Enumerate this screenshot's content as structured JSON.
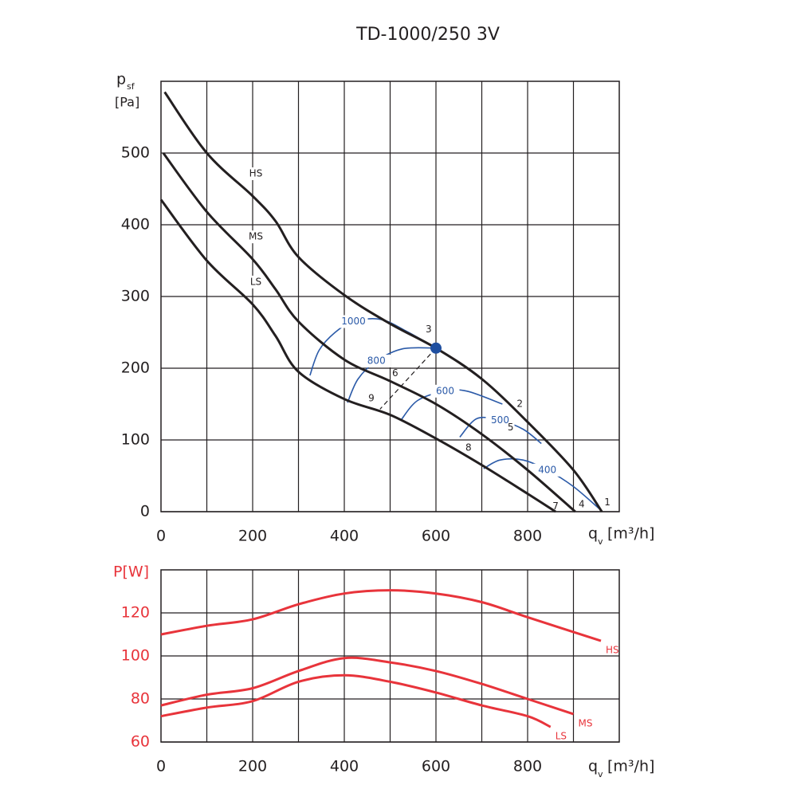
{
  "chart_data": [
    {
      "type": "line",
      "title": "TD-1000/250 3V",
      "y_label": "p",
      "y_label_sub": "sf",
      "y_unit": "[Pa]",
      "x_label": "q",
      "x_label_sub": "v",
      "x_unit": "[m³/h]",
      "xlim": [
        0,
        1000
      ],
      "xticks": [
        0,
        200,
        400,
        600,
        800
      ],
      "xgrid": [
        100,
        200,
        300,
        400,
        500,
        600,
        700,
        800,
        900
      ],
      "ylim": [
        0,
        600
      ],
      "yticks": [
        0,
        100,
        200,
        300,
        400,
        500
      ],
      "grid": true,
      "series": [
        {
          "name": "HS",
          "color": "#231f20",
          "x": [
            8,
            100,
            200,
            250,
            300,
            400,
            500,
            600,
            700,
            800,
            900,
            962
          ],
          "values": [
            585,
            500,
            440,
            405,
            355,
            302,
            262,
            228,
            185,
            125,
            58,
            0
          ]
        },
        {
          "name": "MS",
          "color": "#231f20",
          "x": [
            5,
            100,
            200,
            250,
            300,
            400,
            500,
            600,
            700,
            800,
            904
          ],
          "values": [
            500,
            418,
            352,
            310,
            265,
            212,
            182,
            150,
            108,
            58,
            0
          ]
        },
        {
          "name": "LS",
          "color": "#231f20",
          "x": [
            0,
            100,
            200,
            250,
            300,
            400,
            500,
            600,
            700,
            800,
            861
          ],
          "values": [
            435,
            350,
            289,
            245,
            195,
            157,
            135,
            102,
            65,
            25,
            0
          ]
        }
      ],
      "iso_lines": [
        {
          "name": "1000",
          "color": "#2b5aa8",
          "x": [
            325,
            345,
            380,
            420,
            480,
            540,
            600
          ],
          "values": [
            190,
            225,
            250,
            265,
            268,
            250,
            228
          ]
        },
        {
          "name": "800",
          "color": "#2b5aa8",
          "x": [
            407,
            430,
            470,
            527,
            600
          ],
          "values": [
            152,
            185,
            210,
            227,
            228
          ]
        },
        {
          "name": "600",
          "color": "#2b5aa8",
          "x": [
            523,
            560,
            620,
            668,
            745
          ],
          "values": [
            127,
            155,
            168,
            168,
            150
          ]
        },
        {
          "name": "500",
          "color": "#2b5aa8",
          "x": [
            652,
            690,
            740,
            790,
            830
          ],
          "values": [
            104,
            130,
            127,
            115,
            95
          ]
        },
        {
          "name": "400",
          "color": "#2b5aa8",
          "x": [
            704,
            740,
            790,
            843,
            900,
            960
          ],
          "values": [
            60,
            72,
            72,
            58,
            35,
            2
          ]
        }
      ],
      "operating_point": {
        "x": 600,
        "y": 228,
        "color": "#1f4fa0"
      },
      "guide_line": {
        "x": [
          600,
          478
        ],
        "values": [
          228,
          143
        ]
      },
      "annotations": [
        {
          "text": "1",
          "x": 974,
          "y": 13
        },
        {
          "text": "2",
          "x": 783,
          "y": 150
        },
        {
          "text": "3",
          "x": 584,
          "y": 254
        },
        {
          "text": "4",
          "x": 918,
          "y": 10
        },
        {
          "text": "5",
          "x": 763,
          "y": 117
        },
        {
          "text": "6",
          "x": 511,
          "y": 193
        },
        {
          "text": "7",
          "x": 861,
          "y": 7
        },
        {
          "text": "8",
          "x": 671,
          "y": 89
        },
        {
          "text": "9",
          "x": 459,
          "y": 158
        }
      ]
    },
    {
      "type": "line",
      "y_label": "P[W]",
      "ylabel_color": "#e8343b",
      "ytick_color": "#e8343b",
      "x_label": "q",
      "x_label_sub": "v",
      "x_unit": "[m³/h]",
      "xlim": [
        0,
        1000
      ],
      "xticks": [
        0,
        200,
        400,
        600,
        800
      ],
      "xgrid": [
        100,
        200,
        300,
        400,
        500,
        600,
        700,
        800,
        900
      ],
      "ylim": [
        60,
        140
      ],
      "yticks": [
        60,
        80,
        100,
        120
      ],
      "grid": true,
      "series": [
        {
          "name": "HS",
          "color": "#e8343b",
          "x": [
            0,
            100,
            200,
            300,
            400,
            500,
            600,
            700,
            800,
            960
          ],
          "values": [
            110,
            114,
            117,
            124,
            129,
            130.5,
            129,
            125,
            118,
            107
          ]
        },
        {
          "name": "MS",
          "color": "#e8343b",
          "x": [
            0,
            100,
            200,
            300,
            400,
            500,
            600,
            700,
            800,
            900
          ],
          "values": [
            77,
            82,
            85,
            93,
            99,
            97,
            93,
            87,
            80,
            73
          ]
        },
        {
          "name": "LS",
          "color": "#e8343b",
          "x": [
            0,
            100,
            200,
            300,
            400,
            500,
            600,
            700,
            800,
            850
          ],
          "values": [
            72,
            76,
            79,
            88,
            91,
            88,
            83,
            77,
            72,
            67
          ]
        }
      ]
    }
  ]
}
